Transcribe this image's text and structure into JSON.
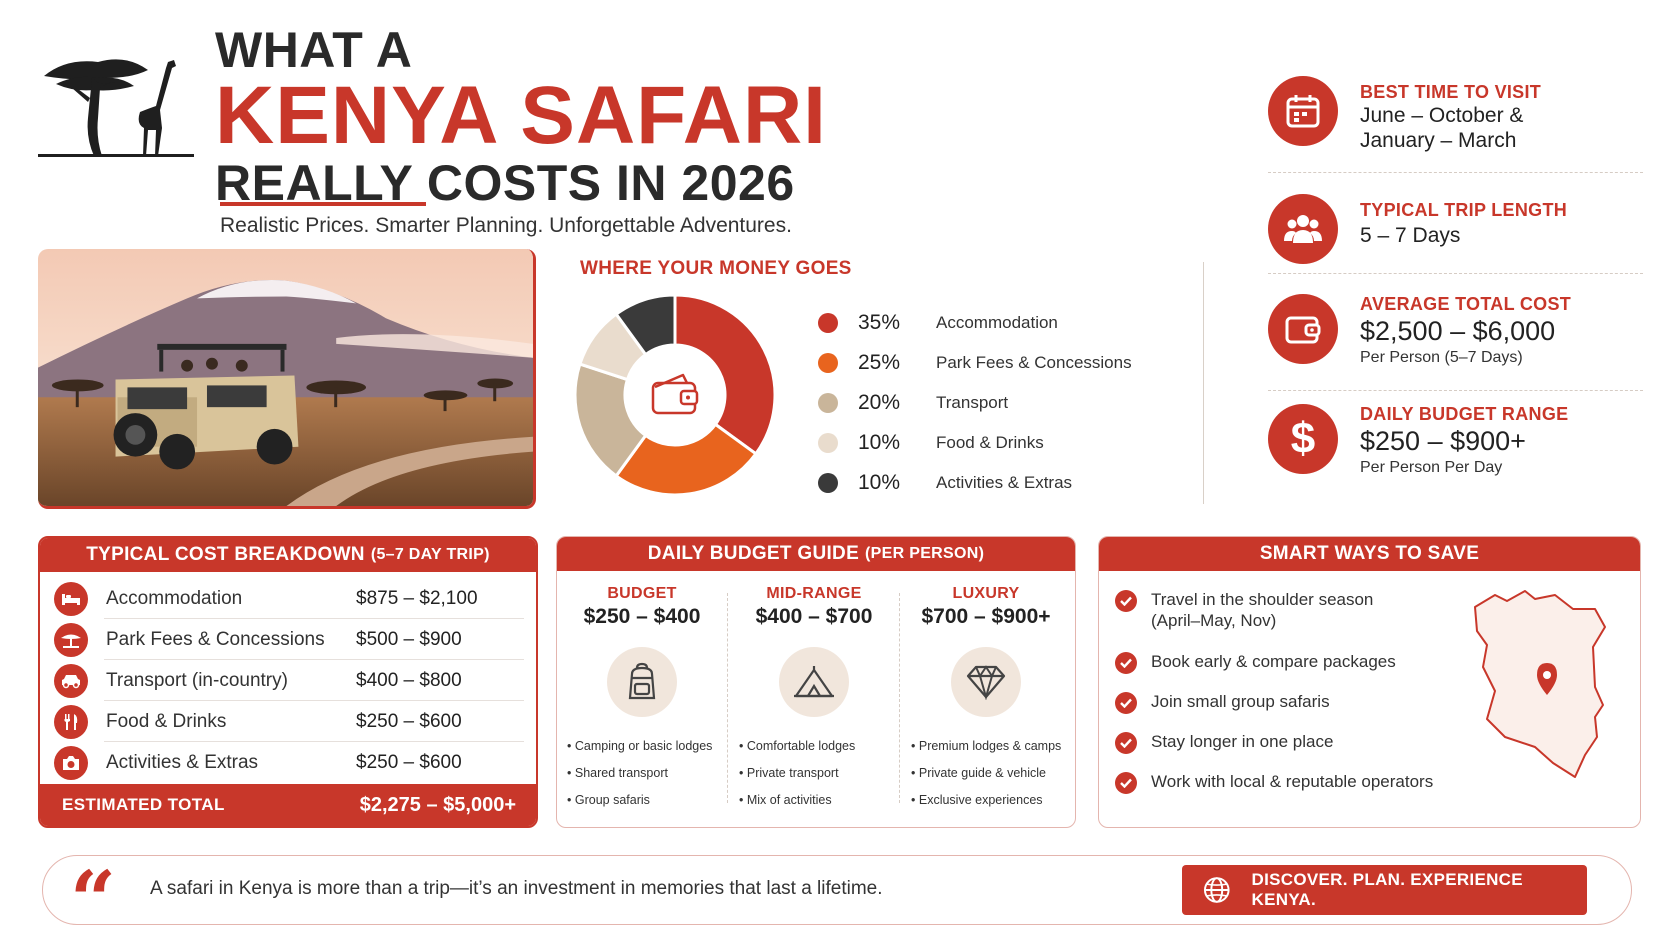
{
  "header": {
    "line1": "WHAT A",
    "line2": "KENYA SAFARI",
    "line3": "REALLY COSTS IN 2026",
    "subtitle": "Realistic Prices. Smarter Planning. Unforgettable Adventures."
  },
  "colors": {
    "accent": "#c8372a",
    "orange": "#e8641e",
    "tan": "#c9b59a",
    "cream": "#e9dccd",
    "dark": "#3a3a3a"
  },
  "money": {
    "title": "WHERE YOUR MONEY GOES",
    "segments": [
      {
        "pct": "35%",
        "value": 35,
        "label": "Accommodation",
        "color": "#c8372a"
      },
      {
        "pct": "25%",
        "value": 25,
        "label": "Park Fees & Concessions",
        "color": "#e8641e"
      },
      {
        "pct": "20%",
        "value": 20,
        "label": "Transport",
        "color": "#c9b59a"
      },
      {
        "pct": "10%",
        "value": 10,
        "label": "Food & Drinks",
        "color": "#e9dccd"
      },
      {
        "pct": "10%",
        "value": 10,
        "label": "Activities & Extras",
        "color": "#3a3a3a"
      }
    ]
  },
  "facts": [
    {
      "label": "BEST TIME TO VISIT",
      "value_1": "June – October &",
      "value_2": "January – March",
      "icon": "calendar-icon"
    },
    {
      "label": "TYPICAL TRIP LENGTH",
      "value_1": "5 – 7 Days",
      "icon": "group-icon"
    },
    {
      "label": "AVERAGE TOTAL COST",
      "big": "$2,500 – $6,000",
      "sub": "Per Person (5–7 Days)",
      "icon": "wallet-icon"
    },
    {
      "label": "DAILY BUDGET RANGE",
      "big": "$250 – $900+",
      "sub": "Per Person Per Day",
      "icon": "dollar-icon"
    }
  ],
  "breakdown": {
    "title": "TYPICAL COST BREAKDOWN",
    "title_small": "(5–7 DAY TRIP)",
    "rows": [
      {
        "name": "Accommodation",
        "value": "$875 – $2,100",
        "icon": "bed-icon"
      },
      {
        "name": "Park Fees & Concessions",
        "value": "$500 – $900",
        "icon": "tree-icon"
      },
      {
        "name": "Transport (in-country)",
        "value": "$400 – $800",
        "icon": "car-icon"
      },
      {
        "name": "Food & Drinks",
        "value": "$250 – $600",
        "icon": "utensils-icon"
      },
      {
        "name": "Activities & Extras",
        "value": "$250 – $600",
        "icon": "camera-icon"
      }
    ],
    "total_label": "ESTIMATED TOTAL",
    "total_value": "$2,275 – $5,000+"
  },
  "daily": {
    "title": "DAILY BUDGET GUIDE",
    "title_small": "(PER PERSON)",
    "tiers": [
      {
        "name": "BUDGET",
        "price": "$250 – $400",
        "icon": "backpack-icon",
        "items": [
          "Camping or basic lodges",
          "Shared transport",
          "Group safaris"
        ]
      },
      {
        "name": "MID-RANGE",
        "price": "$400 – $700",
        "icon": "tent-icon",
        "items": [
          "Comfortable lodges",
          "Private transport",
          "Mix of activities"
        ]
      },
      {
        "name": "LUXURY",
        "price": "$700 – $900+",
        "icon": "diamond-icon",
        "items": [
          "Premium lodges & camps",
          "Private guide & vehicle",
          "Exclusive experiences"
        ]
      }
    ]
  },
  "save": {
    "title": "SMART WAYS TO SAVE",
    "items": [
      {
        "text": "Travel in the shoulder season",
        "text2": "(April–May, Nov)"
      },
      {
        "text": "Book early & compare packages"
      },
      {
        "text": "Join small group safaris"
      },
      {
        "text": "Stay longer in one place"
      },
      {
        "text": "Work with local & reputable operators"
      }
    ]
  },
  "footer": {
    "quote_mark": "“",
    "quote": "A safari in Kenya is more than a trip—it’s an investment in memories that last a lifetime.",
    "cta": "DISCOVER. PLAN. EXPERIENCE KENYA."
  }
}
